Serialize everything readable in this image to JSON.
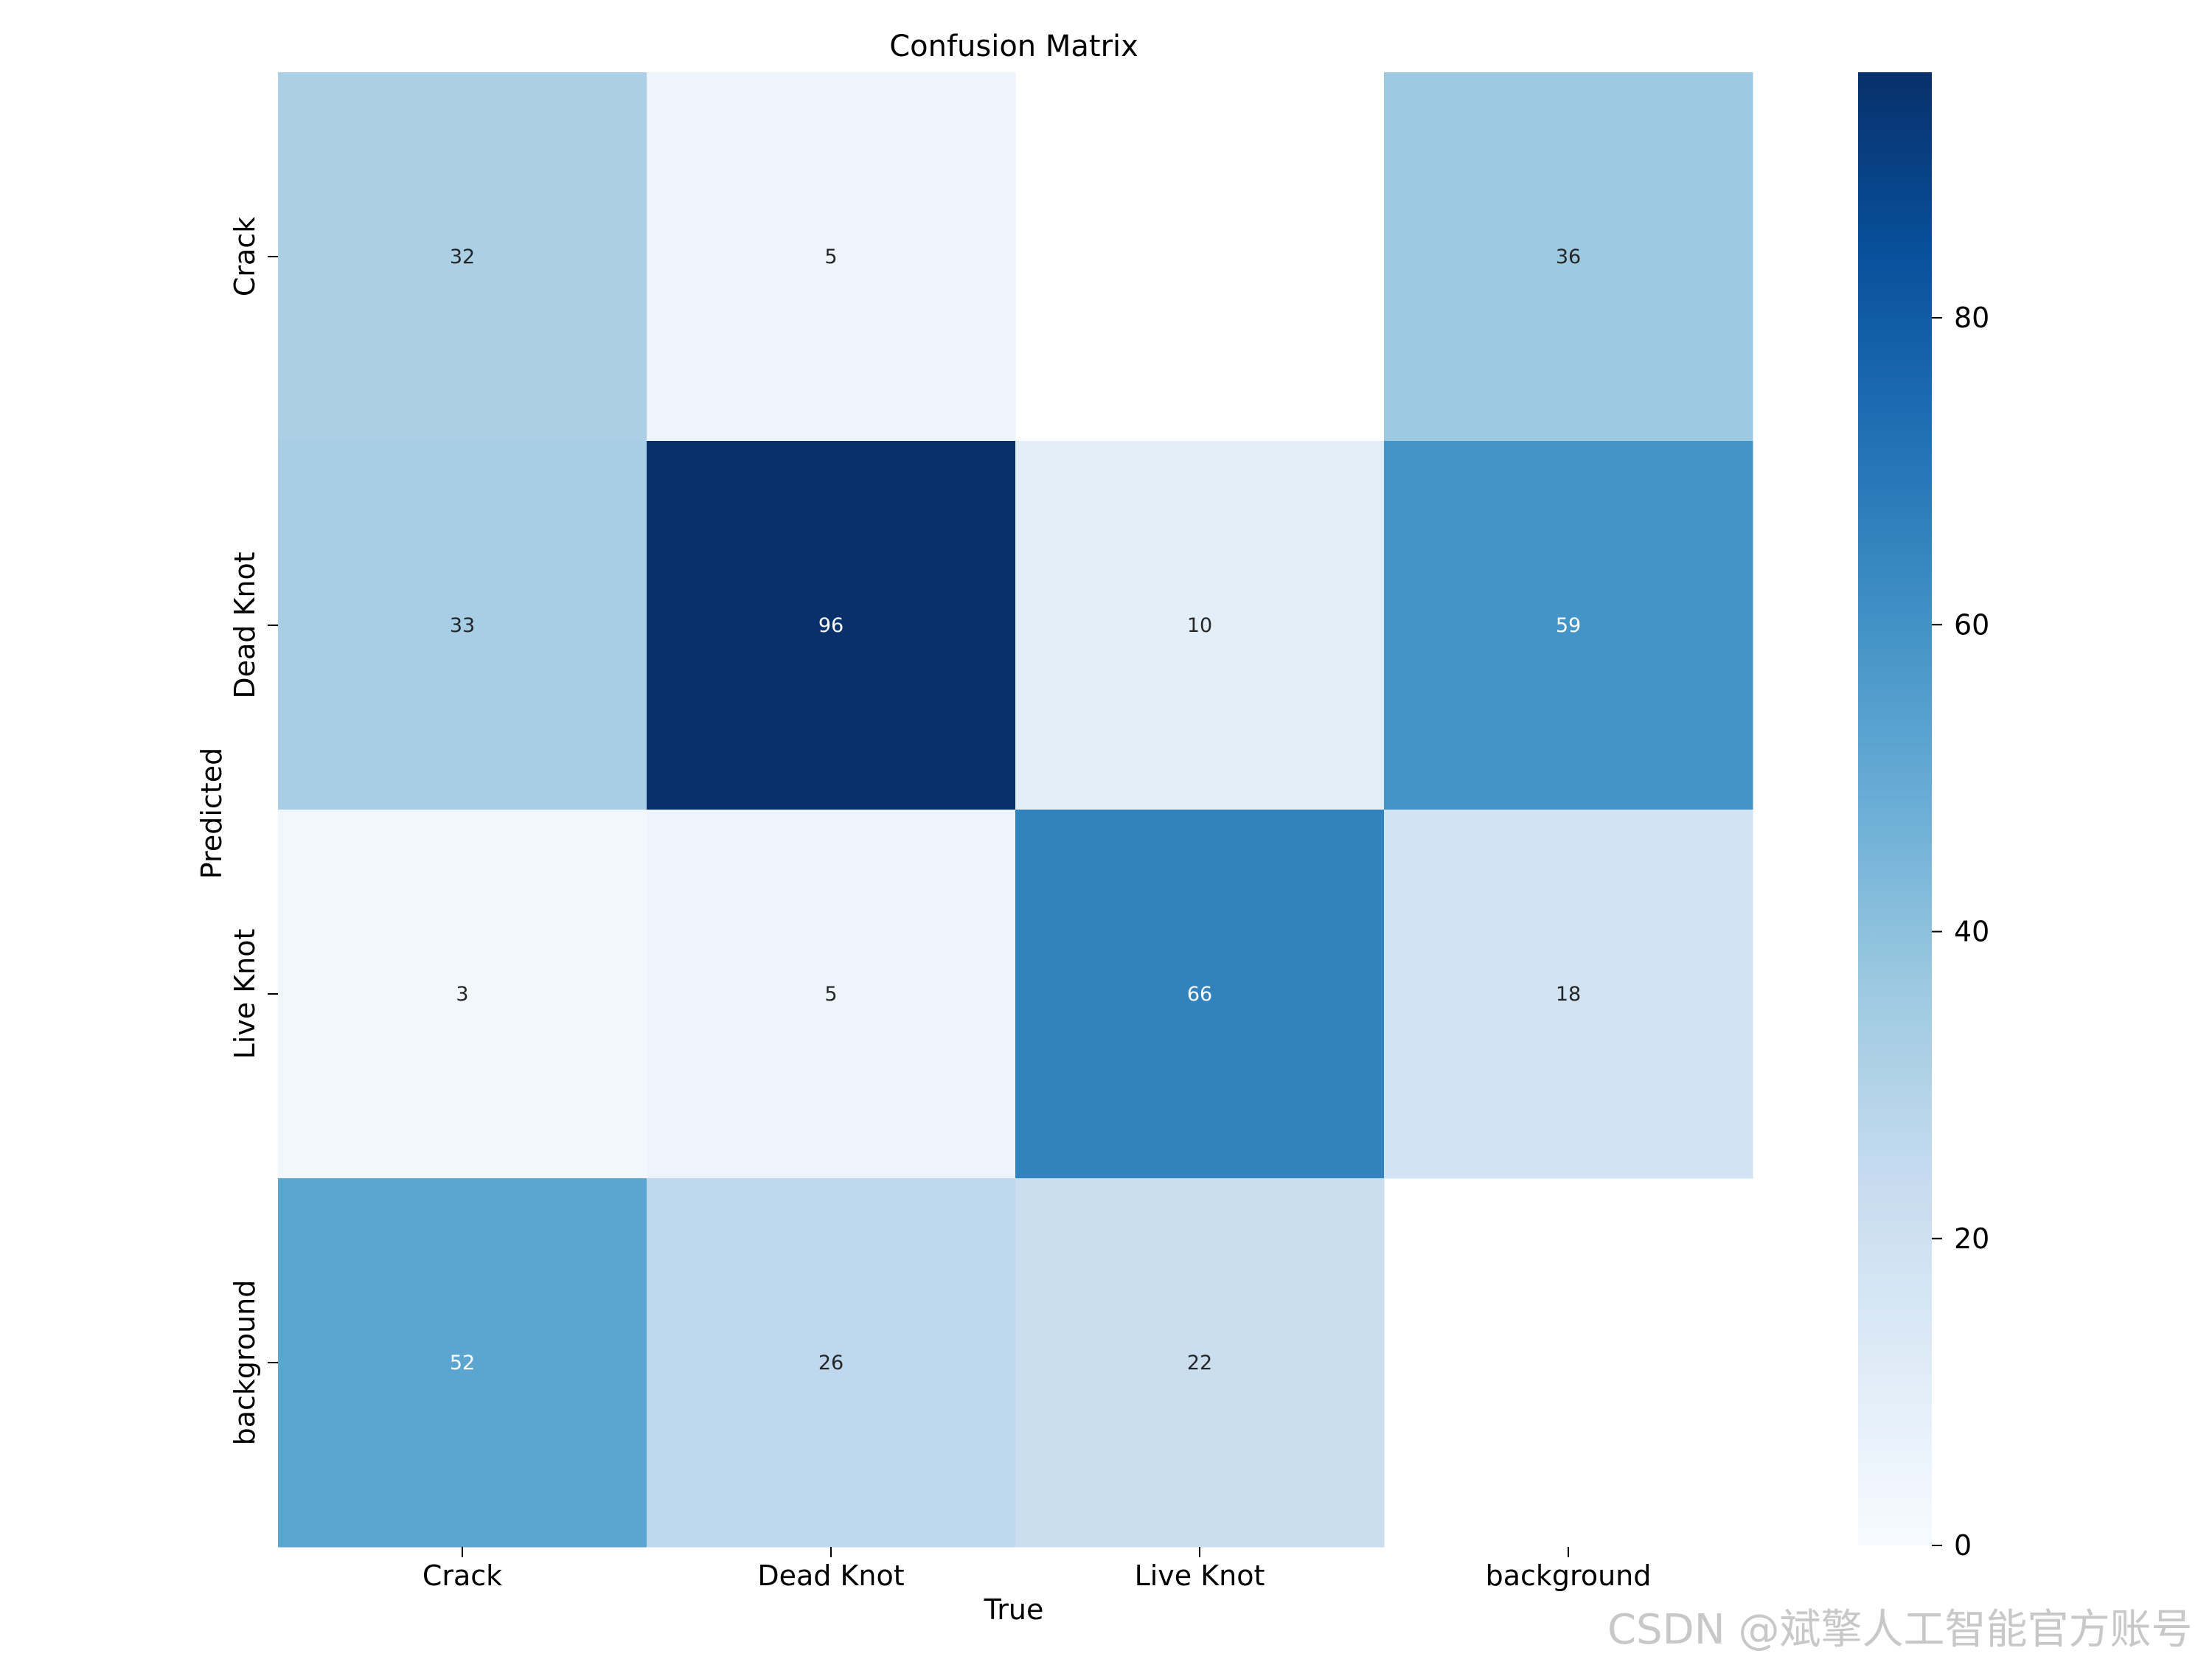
{
  "chart_data": {
    "type": "heatmap",
    "title": "Confusion Matrix",
    "xlabel": "True",
    "ylabel": "Predicted",
    "x_categories": [
      "Crack",
      "Dead Knot",
      "Live Knot",
      "background"
    ],
    "y_categories": [
      "Crack",
      "Dead Knot",
      "Live Knot",
      "background"
    ],
    "values": [
      [
        32,
        5,
        null,
        36
      ],
      [
        33,
        96,
        10,
        59
      ],
      [
        3,
        5,
        66,
        18
      ],
      [
        52,
        26,
        22,
        null
      ]
    ],
    "color_range": [
      0,
      96
    ],
    "colormap": "Blues",
    "colorbar_ticks": [
      0,
      20,
      40,
      60,
      80
    ],
    "light_text_color": "#ffffff",
    "dark_text_color": "#262626"
  },
  "watermark": "CSDN @斌擎人工智能官方账号"
}
